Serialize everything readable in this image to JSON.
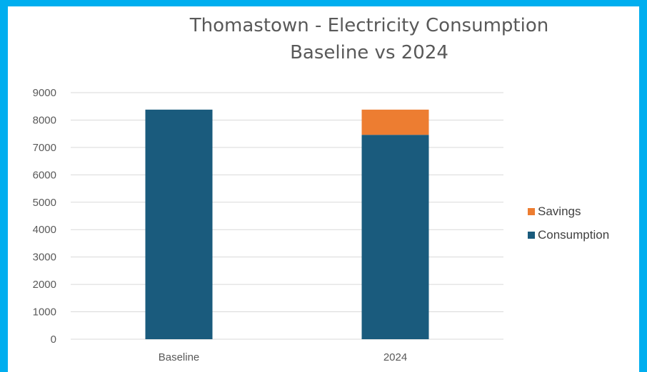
{
  "chart_data": {
    "type": "bar",
    "stacked": true,
    "title": "Thomastown - Electricity Consumption",
    "subtitle": "Baseline vs 2024",
    "categories": [
      "Baseline",
      "2024"
    ],
    "series": [
      {
        "name": "Consumption",
        "color": "#1a5b7d",
        "values": [
          8380,
          7460
        ]
      },
      {
        "name": "Savings",
        "color": "#ed7d31",
        "values": [
          0,
          920
        ]
      }
    ],
    "ylim": [
      0,
      9000
    ],
    "yticks": [
      "0",
      "1000",
      "2000",
      "3000",
      "4000",
      "5000",
      "6000",
      "7000",
      "8000",
      "9000"
    ],
    "grid": true,
    "legend_position": "right",
    "xlabel": "",
    "ylabel": ""
  },
  "legend": [
    {
      "label": "Savings",
      "color": "#ed7d31"
    },
    {
      "label": "Consumption",
      "color": "#1a5b7d"
    }
  ]
}
